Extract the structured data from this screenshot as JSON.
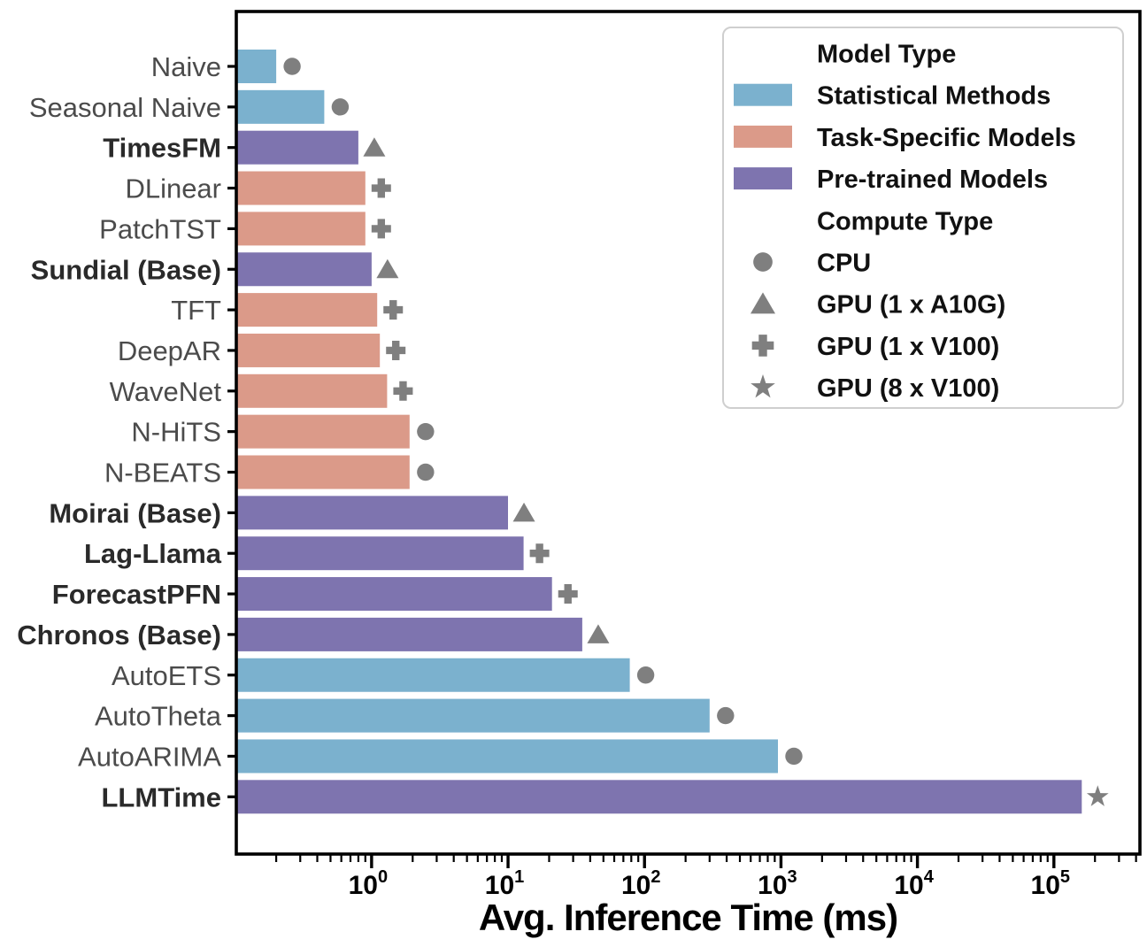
{
  "figure": {
    "background": "#ffffff",
    "axis_color": "#000000",
    "xlabel": "Avg. Inference Time (ms)",
    "y_label_color": "#4b4b4b",
    "y_label_bold_color": "#2a2a2a",
    "tick_label_color": "#000000"
  },
  "legend": {
    "background": "#ffffff",
    "border_color": "#cfcfcf",
    "marker_color": "#7f7f7f",
    "rows": [
      {
        "kind": "title",
        "label": "Model Type"
      },
      {
        "kind": "swatch",
        "type_key": "statistical",
        "label": "Statistical Methods"
      },
      {
        "kind": "swatch",
        "type_key": "task_specific",
        "label": "Task-Specific Models"
      },
      {
        "kind": "swatch",
        "type_key": "pretrained",
        "label": "Pre-trained Models"
      },
      {
        "kind": "title",
        "label": "Compute Type"
      },
      {
        "kind": "marker",
        "marker": "circle",
        "label": "CPU"
      },
      {
        "kind": "marker",
        "marker": "triangle",
        "label": "GPU (1 x A10G)"
      },
      {
        "kind": "marker",
        "marker": "plus",
        "label": "GPU (1 x V100)"
      },
      {
        "kind": "marker",
        "marker": "star",
        "label": "GPU (8 x V100)"
      }
    ]
  },
  "chart_data": {
    "type": "bar",
    "orientation": "horizontal",
    "x_scale": "log",
    "title": "",
    "xlabel": "Avg. Inference Time (ms)",
    "ylabel": "",
    "xlim": [
      0.102,
      427000
    ],
    "x_major_ticks": [
      1,
      10,
      100,
      1000,
      10000,
      100000
    ],
    "x_tick_labels": [
      "10⁰",
      "10¹",
      "10²",
      "10³",
      "10⁴",
      "10⁵"
    ],
    "grid": false,
    "legend_position": "upper right",
    "colors": {
      "statistical": "#7bb1ce",
      "task_specific": "#db9a89",
      "pretrained": "#7e74af",
      "marker": "#7f7f7f"
    },
    "bars": [
      {
        "model": "Naive",
        "value_ms": 0.2,
        "type_key": "statistical",
        "model_type": "Statistical Methods",
        "compute_type": "CPU",
        "marker": "circle",
        "bold": false
      },
      {
        "model": "Seasonal Naive",
        "value_ms": 0.45,
        "type_key": "statistical",
        "model_type": "Statistical Methods",
        "compute_type": "CPU",
        "marker": "circle",
        "bold": false
      },
      {
        "model": "TimesFM",
        "value_ms": 0.8,
        "type_key": "pretrained",
        "model_type": "Pre-trained Models",
        "compute_type": "GPU (1 x A10G)",
        "marker": "triangle",
        "bold": true
      },
      {
        "model": "DLinear",
        "value_ms": 0.9,
        "type_key": "task_specific",
        "model_type": "Task-Specific Models",
        "compute_type": "GPU (1 x V100)",
        "marker": "plus",
        "bold": false
      },
      {
        "model": "PatchTST",
        "value_ms": 0.9,
        "type_key": "task_specific",
        "model_type": "Task-Specific Models",
        "compute_type": "GPU (1 x V100)",
        "marker": "plus",
        "bold": false
      },
      {
        "model": "Sundial (Base)",
        "value_ms": 1.0,
        "type_key": "pretrained",
        "model_type": "Pre-trained Models",
        "compute_type": "GPU (1 x A10G)",
        "marker": "triangle",
        "bold": true
      },
      {
        "model": "TFT",
        "value_ms": 1.1,
        "type_key": "task_specific",
        "model_type": "Task-Specific Models",
        "compute_type": "GPU (1 x V100)",
        "marker": "plus",
        "bold": false
      },
      {
        "model": "DeepAR",
        "value_ms": 1.15,
        "type_key": "task_specific",
        "model_type": "Task-Specific Models",
        "compute_type": "GPU (1 x V100)",
        "marker": "plus",
        "bold": false
      },
      {
        "model": "WaveNet",
        "value_ms": 1.3,
        "type_key": "task_specific",
        "model_type": "Task-Specific Models",
        "compute_type": "GPU (1 x V100)",
        "marker": "plus",
        "bold": false
      },
      {
        "model": "N-HiTS",
        "value_ms": 1.9,
        "type_key": "task_specific",
        "model_type": "Task-Specific Models",
        "compute_type": "CPU",
        "marker": "circle",
        "bold": false
      },
      {
        "model": "N-BEATS",
        "value_ms": 1.9,
        "type_key": "task_specific",
        "model_type": "Task-Specific Models",
        "compute_type": "CPU",
        "marker": "circle",
        "bold": false
      },
      {
        "model": "Moirai (Base)",
        "value_ms": 10,
        "type_key": "pretrained",
        "model_type": "Pre-trained Models",
        "compute_type": "GPU (1 x A10G)",
        "marker": "triangle",
        "bold": true
      },
      {
        "model": "Lag-Llama",
        "value_ms": 13,
        "type_key": "pretrained",
        "model_type": "Pre-trained Models",
        "compute_type": "GPU (1 x V100)",
        "marker": "plus",
        "bold": true
      },
      {
        "model": "ForecastPFN",
        "value_ms": 21,
        "type_key": "pretrained",
        "model_type": "Pre-trained Models",
        "compute_type": "GPU (1 x V100)",
        "marker": "plus",
        "bold": true
      },
      {
        "model": "Chronos (Base)",
        "value_ms": 35,
        "type_key": "pretrained",
        "model_type": "Pre-trained Models",
        "compute_type": "GPU (1 x A10G)",
        "marker": "triangle",
        "bold": true
      },
      {
        "model": "AutoETS",
        "value_ms": 78,
        "type_key": "statistical",
        "model_type": "Statistical Methods",
        "compute_type": "CPU",
        "marker": "circle",
        "bold": false
      },
      {
        "model": "AutoTheta",
        "value_ms": 300,
        "type_key": "statistical",
        "model_type": "Statistical Methods",
        "compute_type": "CPU",
        "marker": "circle",
        "bold": false
      },
      {
        "model": "AutoARIMA",
        "value_ms": 950,
        "type_key": "statistical",
        "model_type": "Statistical Methods",
        "compute_type": "CPU",
        "marker": "circle",
        "bold": false
      },
      {
        "model": "LLMTime",
        "value_ms": 160000,
        "type_key": "pretrained",
        "model_type": "Pre-trained Models",
        "compute_type": "GPU (8 x V100)",
        "marker": "star",
        "bold": true
      }
    ]
  }
}
